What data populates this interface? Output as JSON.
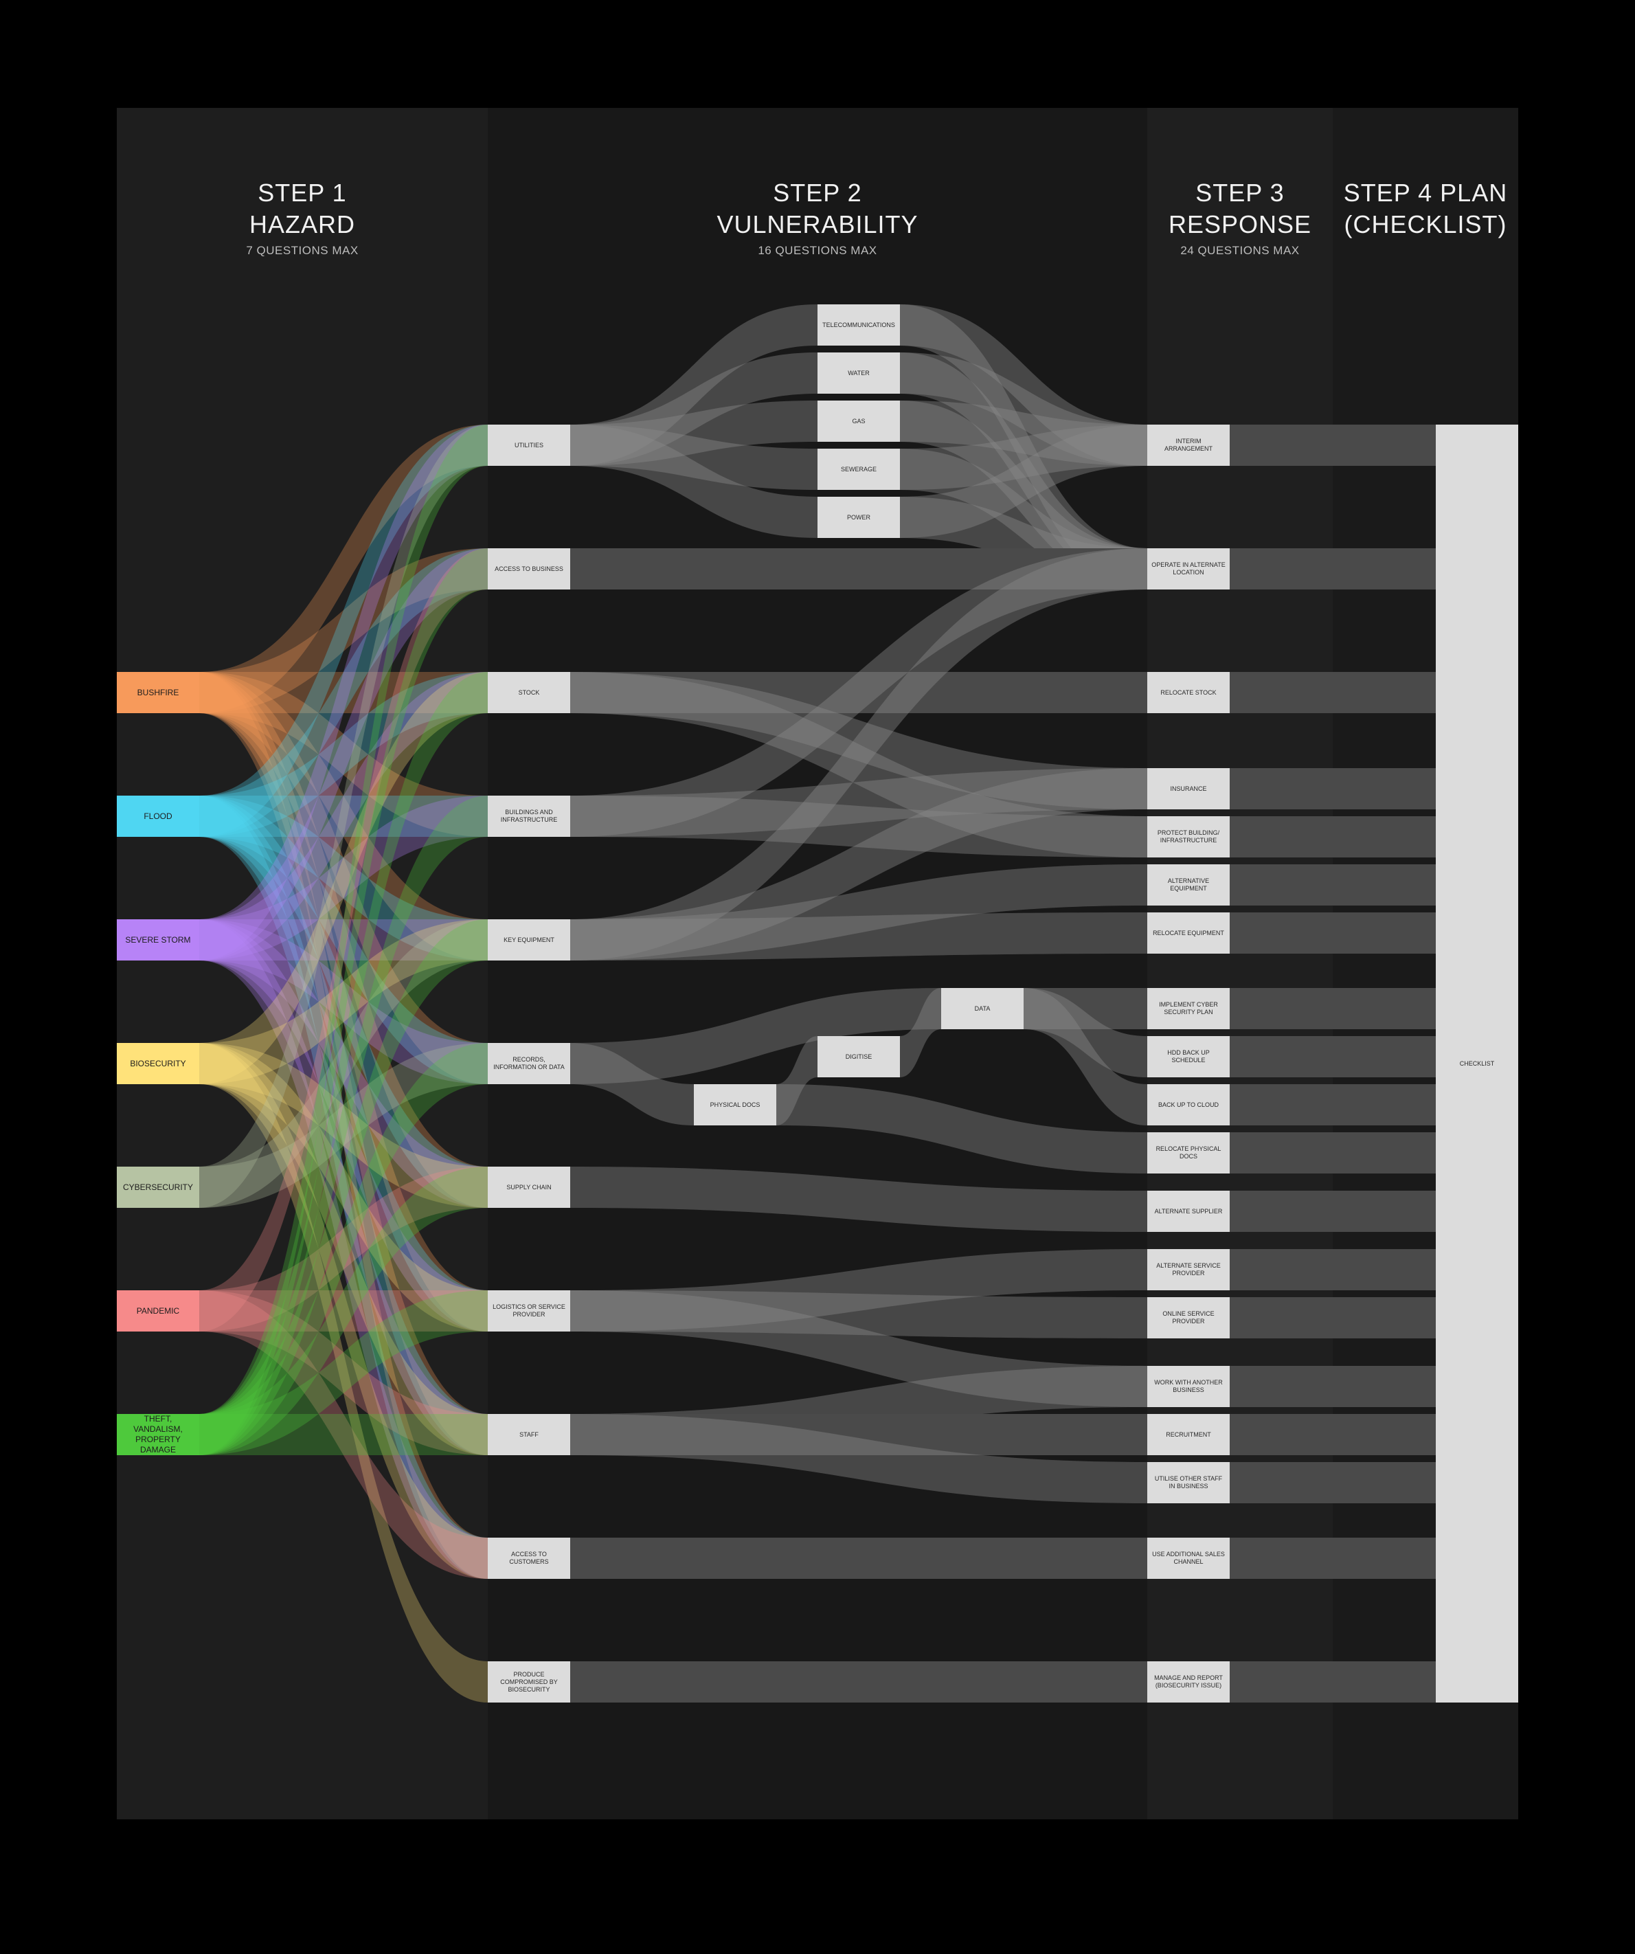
{
  "colors": {
    "page_bg": "#000000",
    "column_bg": "#1e1e1e",
    "node_fill": "#dcdcdc",
    "plan_flow": "#4a4a4a"
  },
  "columns": [
    {
      "title_line1": "STEP 1",
      "title_line2": "HAZARD",
      "subtitle": "7 QUESTIONS MAX"
    },
    {
      "title_line1": "STEP 2",
      "title_line2": "VULNERABILITY",
      "subtitle": "16 QUESTIONS MAX"
    },
    {
      "title_line1": "STEP 3",
      "title_line2": "RESPONSE",
      "subtitle": "24 QUESTIONS MAX"
    },
    {
      "title_line1": "STEP 4 PLAN",
      "title_line2": "(CHECKLIST)",
      "subtitle": ""
    }
  ],
  "hazards": [
    {
      "id": "bushfire",
      "label": "BUSHFIRE",
      "color": "#f79a5b"
    },
    {
      "id": "flood",
      "label": "FLOOD",
      "color": "#4fd6f2"
    },
    {
      "id": "storm",
      "label": "SEVERE STORM",
      "color": "#b783f7"
    },
    {
      "id": "biosecurity",
      "label": "BIOSECURITY",
      "color": "#ffe27a"
    },
    {
      "id": "cyber",
      "label": "CYBERSECURITY",
      "color": "#b6c3a3"
    },
    {
      "id": "pandemic",
      "label": "PANDEMIC",
      "color": "#f68a8a"
    },
    {
      "id": "theft",
      "label": "THEFT, VANDALISM, PROPERTY DAMAGE",
      "color": "#4ec93c"
    }
  ],
  "vulnerabilities": [
    {
      "id": "utilities",
      "label": "UTILITIES"
    },
    {
      "id": "access_business",
      "label": "ACCESS TO BUSINESS"
    },
    {
      "id": "stock",
      "label": "STOCK"
    },
    {
      "id": "buildings",
      "label": "BUILDINGS AND INFRASTRUCTURE"
    },
    {
      "id": "key_equipment",
      "label": "KEY EQUIPMENT"
    },
    {
      "id": "records",
      "label": "RECORDS, INFORMATION OR DATA"
    },
    {
      "id": "supply_chain",
      "label": "SUPPLY CHAIN"
    },
    {
      "id": "logistics",
      "label": "LOGISTICS OR SERVICE PROVIDER"
    },
    {
      "id": "staff",
      "label": "STAFF"
    },
    {
      "id": "access_customers",
      "label": "ACCESS TO CUSTOMERS"
    },
    {
      "id": "produce",
      "label": "PRODUCE COMPROMISED BY BIOSECURITY"
    }
  ],
  "utility_types": [
    {
      "id": "telecom",
      "label": "TELECOMMUNICATIONS"
    },
    {
      "id": "water",
      "label": "WATER"
    },
    {
      "id": "gas",
      "label": "GAS"
    },
    {
      "id": "sewerage",
      "label": "SEWERAGE"
    },
    {
      "id": "power",
      "label": "POWER"
    }
  ],
  "record_types": [
    {
      "id": "physical_docs",
      "label": "PHYSICAL DOCS"
    },
    {
      "id": "digitise",
      "label": "DIGITISE"
    },
    {
      "id": "data",
      "label": "DATA"
    }
  ],
  "responses": [
    {
      "id": "interim",
      "label": "INTERIM ARRANGEMENT"
    },
    {
      "id": "alt_location",
      "label": "OPERATE IN ALTERNATE LOCATION"
    },
    {
      "id": "relocate_stock",
      "label": "RELOCATE STOCK"
    },
    {
      "id": "insurance",
      "label": "INSURANCE"
    },
    {
      "id": "protect_building",
      "label": "PROTECT BUILDING/ INFRASTRUCTURE"
    },
    {
      "id": "alt_equipment",
      "label": "ALTERNATIVE EQUIPMENT"
    },
    {
      "id": "relocate_equipment",
      "label": "RELOCATE EQUIPMENT"
    },
    {
      "id": "cyber_plan",
      "label": "IMPLEMENT CYBER SECURITY PLAN"
    },
    {
      "id": "hdd_backup",
      "label": "HDD BACK UP SCHEDULE"
    },
    {
      "id": "cloud_backup",
      "label": "BACK UP TO CLOUD"
    },
    {
      "id": "relocate_docs",
      "label": "RELOCATE PHYSICAL DOCS"
    },
    {
      "id": "alt_supplier",
      "label": "ALTERNATE SUPPLIER"
    },
    {
      "id": "alt_provider",
      "label": "ALTERNATE SERVICE PROVIDER"
    },
    {
      "id": "online_provider",
      "label": "ONLINE SERVICE PROVIDER"
    },
    {
      "id": "work_with",
      "label": "WORK WITH ANOTHER BUSINESS"
    },
    {
      "id": "recruitment",
      "label": "RECRUITMENT"
    },
    {
      "id": "utilise_staff",
      "label": "UTILISE OTHER STAFF IN BUSINESS"
    },
    {
      "id": "sales_channel",
      "label": "USE ADDITIONAL SALES CHANNEL"
    },
    {
      "id": "biosecurity_issue",
      "label": "MANAGE AND REPORT (BIOSECURITY ISSUE)"
    }
  ],
  "checklist": {
    "id": "checklist",
    "label": "CHECKLIST"
  },
  "links": {
    "hazard_to_vulnerability": {
      "bushfire": [
        "utilities",
        "access_business",
        "stock",
        "buildings",
        "key_equipment",
        "records",
        "supply_chain",
        "logistics",
        "staff",
        "access_customers"
      ],
      "flood": [
        "utilities",
        "access_business",
        "stock",
        "buildings",
        "key_equipment",
        "records",
        "supply_chain",
        "logistics",
        "staff",
        "access_customers"
      ],
      "storm": [
        "utilities",
        "access_business",
        "stock",
        "buildings",
        "key_equipment",
        "records",
        "supply_chain",
        "logistics",
        "staff",
        "access_customers"
      ],
      "biosecurity": [
        "stock",
        "key_equipment",
        "supply_chain",
        "logistics",
        "staff",
        "access_customers",
        "produce"
      ],
      "cyber": [
        "records",
        "key_equipment",
        "utilities"
      ],
      "pandemic": [
        "access_business",
        "supply_chain",
        "logistics",
        "staff",
        "access_customers"
      ],
      "theft": [
        "utilities",
        "access_business",
        "stock",
        "buildings",
        "key_equipment",
        "records",
        "supply_chain",
        "logistics",
        "staff"
      ]
    },
    "vulnerability_to_response": [
      [
        "utilities",
        "telecom"
      ],
      [
        "utilities",
        "water"
      ],
      [
        "utilities",
        "gas"
      ],
      [
        "utilities",
        "sewerage"
      ],
      [
        "utilities",
        "power"
      ],
      [
        "telecom",
        "interim"
      ],
      [
        "telecom",
        "alt_location"
      ],
      [
        "water",
        "interim"
      ],
      [
        "water",
        "alt_location"
      ],
      [
        "gas",
        "interim"
      ],
      [
        "gas",
        "alt_location"
      ],
      [
        "sewerage",
        "interim"
      ],
      [
        "sewerage",
        "alt_location"
      ],
      [
        "power",
        "interim"
      ],
      [
        "power",
        "alt_location"
      ],
      [
        "access_business",
        "alt_location"
      ],
      [
        "stock",
        "relocate_stock"
      ],
      [
        "stock",
        "insurance"
      ],
      [
        "stock",
        "protect_building"
      ],
      [
        "buildings",
        "insurance"
      ],
      [
        "buildings",
        "protect_building"
      ],
      [
        "buildings",
        "alt_location"
      ],
      [
        "key_equipment",
        "alt_equipment"
      ],
      [
        "key_equipment",
        "relocate_equipment"
      ],
      [
        "key_equipment",
        "alt_location"
      ],
      [
        "key_equipment",
        "insurance"
      ],
      [
        "records",
        "physical_docs"
      ],
      [
        "records",
        "data"
      ],
      [
        "physical_docs",
        "digitise"
      ],
      [
        "physical_docs",
        "relocate_docs"
      ],
      [
        "digitise",
        "data"
      ],
      [
        "data",
        "cyber_plan"
      ],
      [
        "data",
        "hdd_backup"
      ],
      [
        "data",
        "cloud_backup"
      ],
      [
        "supply_chain",
        "alt_supplier"
      ],
      [
        "logistics",
        "alt_provider"
      ],
      [
        "logistics",
        "online_provider"
      ],
      [
        "logistics",
        "work_with"
      ],
      [
        "staff",
        "work_with"
      ],
      [
        "staff",
        "recruitment"
      ],
      [
        "staff",
        "utilise_staff"
      ],
      [
        "access_customers",
        "sales_channel"
      ],
      [
        "produce",
        "biosecurity_issue"
      ]
    ]
  }
}
